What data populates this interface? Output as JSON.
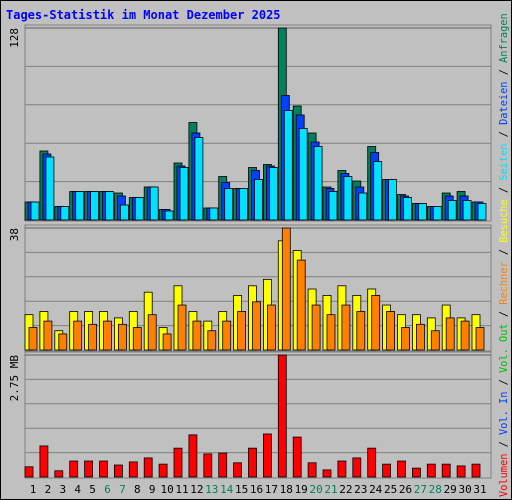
{
  "chart_data": [
    {
      "type": "bar",
      "title": "Tages-Statistik im Monat Dezember 2025",
      "legend_separator": " / ",
      "ylim": [
        0,
        128
      ],
      "yticks": [
        128
      ],
      "grid_lines": 4,
      "series": [
        {
          "name": "Anfragen",
          "color": "#00805c",
          "values": [
            12,
            46,
            9,
            19,
            19,
            19,
            18,
            15,
            22,
            7,
            38,
            65,
            8,
            29,
            21,
            35,
            37,
            128,
            76,
            58,
            22,
            33,
            26,
            49,
            27,
            17,
            11,
            9,
            18,
            19,
            12
          ]
        },
        {
          "name": "Dateien",
          "color": "#0040ff",
          "values": [
            12,
            44,
            9,
            19,
            19,
            19,
            16,
            15,
            22,
            7,
            36,
            58,
            8,
            25,
            21,
            33,
            36,
            83,
            70,
            52,
            21,
            31,
            22,
            45,
            27,
            16,
            11,
            9,
            16,
            16,
            12
          ]
        },
        {
          "name": "Seiten",
          "color": "#00e0ff",
          "values": [
            12,
            42,
            9,
            19,
            19,
            19,
            10,
            15,
            22,
            6,
            35,
            55,
            8,
            21,
            21,
            27,
            35,
            73,
            61,
            49,
            19,
            29,
            18,
            39,
            27,
            15,
            11,
            9,
            13,
            13,
            11
          ]
        }
      ]
    },
    {
      "type": "bar",
      "ylim": [
        0,
        38
      ],
      "yticks": [
        38
      ],
      "grid_lines": 4,
      "series": [
        {
          "name": "Besuche",
          "color": "#ffff00",
          "values": [
            11,
            12,
            6,
            12,
            12,
            12,
            10,
            12,
            18,
            7,
            20,
            12,
            9,
            12,
            17,
            20,
            22,
            34,
            31,
            19,
            17,
            20,
            17,
            19,
            14,
            11,
            11,
            10,
            14,
            10,
            11
          ]
        },
        {
          "name": "Rechner",
          "color": "#ff8000",
          "values": [
            7,
            9,
            5,
            9,
            8,
            9,
            8,
            7,
            11,
            5,
            14,
            9,
            6,
            9,
            12,
            15,
            14,
            38,
            28,
            14,
            11,
            14,
            12,
            17,
            12,
            7,
            8,
            6,
            10,
            9,
            7
          ]
        }
      ]
    },
    {
      "type": "bar",
      "ylim": [
        0,
        2.75
      ],
      "yticks": [
        {
          "value": 2.75,
          "label": "2.75 MB"
        }
      ],
      "grid_lines": 4,
      "categories": [
        "1",
        "2",
        "3",
        "4",
        "5",
        "6",
        "7",
        "8",
        "9",
        "10",
        "11",
        "12",
        "13",
        "14",
        "15",
        "16",
        "17",
        "18",
        "19",
        "20",
        "21",
        "22",
        "23",
        "24",
        "25",
        "26",
        "27",
        "28",
        "29",
        "30",
        "31"
      ],
      "category_colors": [
        "#000000",
        "#000000",
        "#000000",
        "#000000",
        "#000000",
        "#00805c",
        "#00805c",
        "#000000",
        "#000000",
        "#000000",
        "#000000",
        "#000000",
        "#00805c",
        "#00805c",
        "#000000",
        "#000000",
        "#000000",
        "#000000",
        "#000000",
        "#00805c",
        "#00805c",
        "#000000",
        "#000000",
        "#000000",
        "#000000",
        "#000000",
        "#00805c",
        "#00805c",
        "#000000",
        "#000000",
        "#000000"
      ],
      "series": [
        {
          "name": "Vol. Out",
          "color": "#00c000"
        },
        {
          "name": "Vol. In",
          "color": "#0040ff"
        },
        {
          "name": "Volumen",
          "color": "#ff0000",
          "values": [
            0.23,
            0.7,
            0.14,
            0.36,
            0.36,
            0.36,
            0.27,
            0.34,
            0.43,
            0.29,
            0.65,
            0.95,
            0.52,
            0.54,
            0.32,
            0.65,
            0.97,
            2.75,
            0.9,
            0.32,
            0.16,
            0.36,
            0.43,
            0.65,
            0.29,
            0.36,
            0.2,
            0.29,
            0.29,
            0.25,
            0.29
          ]
        }
      ]
    }
  ]
}
